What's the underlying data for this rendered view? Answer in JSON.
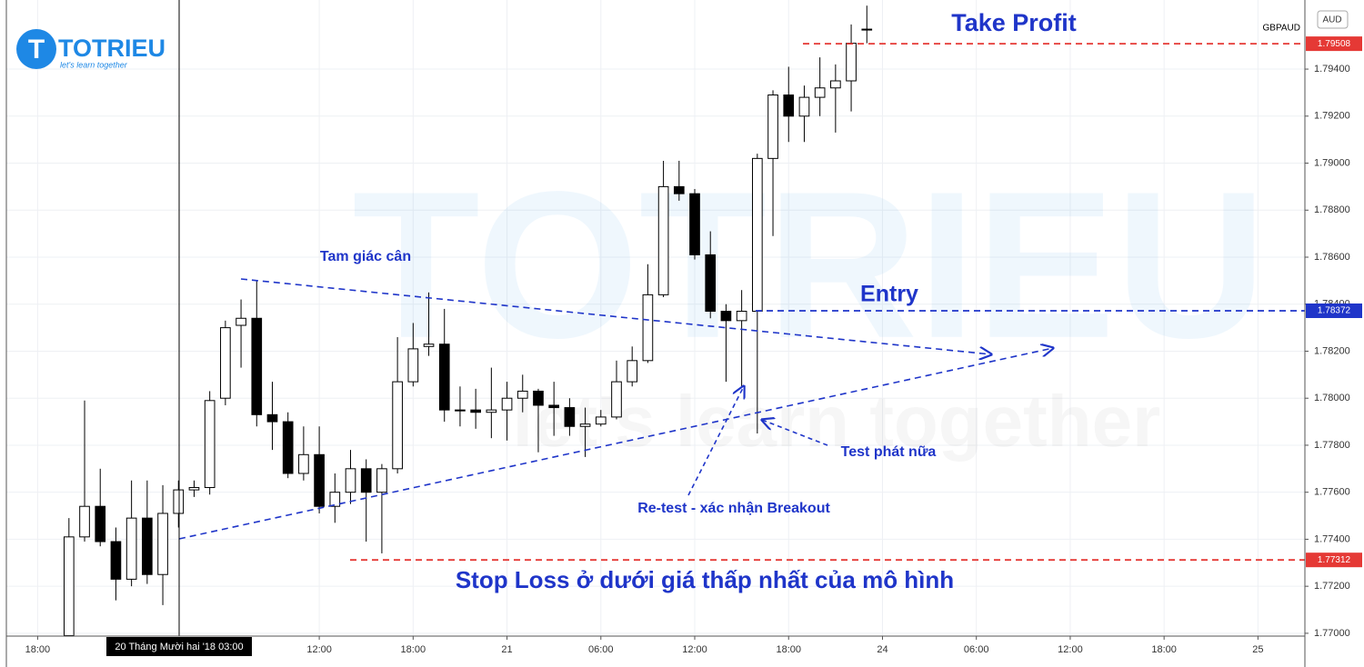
{
  "chart_data": {
    "type": "candlestick",
    "symbol": "GBPAUD",
    "currency": "AUD",
    "logo": {
      "name": "TOTRIEU",
      "slogan": "let's learn together"
    },
    "crosshair": {
      "x": 9,
      "label": "20 Tháng Mười hai '18  03:00"
    },
    "x": [
      2,
      3,
      4,
      5,
      6,
      7,
      8,
      9,
      10,
      11,
      12,
      13,
      14,
      15,
      16,
      17,
      18,
      19,
      20,
      21,
      22,
      23,
      24,
      25,
      26,
      27,
      28,
      29,
      30,
      31,
      32,
      33,
      34,
      35,
      36,
      37,
      38,
      39,
      40,
      41,
      42,
      43,
      44,
      45,
      46,
      47,
      48,
      49,
      50,
      51,
      52,
      53
    ],
    "open": [
      1.7699,
      1.7741,
      1.7754,
      1.7739,
      1.7723,
      1.7749,
      1.7725,
      1.7751,
      1.7761,
      1.7762,
      1.78,
      1.7831,
      1.7834,
      1.7793,
      1.779,
      1.7768,
      1.7776,
      1.7754,
      1.776,
      1.777,
      1.776,
      1.777,
      1.7807,
      1.7822,
      1.7823,
      1.7795,
      1.7795,
      1.7794,
      1.7795,
      1.78,
      1.7803,
      1.7797,
      1.7796,
      1.7788,
      1.7789,
      1.7792,
      1.7807,
      1.7816,
      1.7844,
      1.789,
      1.7887,
      1.7861,
      1.7837,
      1.7833,
      1.7837,
      1.7902,
      1.7929,
      1.792,
      1.7928,
      1.7932,
      1.7935,
      1.7957
    ],
    "high": [
      1.7749,
      1.7799,
      1.777,
      1.7745,
      1.7765,
      1.7765,
      1.7763,
      1.7765,
      1.7765,
      1.7803,
      1.7833,
      1.7842,
      1.785,
      1.7807,
      1.7794,
      1.7788,
      1.7788,
      1.7768,
      1.7778,
      1.7774,
      1.7772,
      1.7826,
      1.7832,
      1.7845,
      1.7838,
      1.7805,
      1.7804,
      1.7813,
      1.7807,
      1.781,
      1.7804,
      1.7807,
      1.78,
      1.7796,
      1.7795,
      1.7816,
      1.7822,
      1.7857,
      1.7901,
      1.7901,
      1.7889,
      1.7871,
      1.784,
      1.7846,
      1.7904,
      1.7931,
      1.7941,
      1.7933,
      1.7945,
      1.7942,
      1.7959,
      1.7967
    ],
    "low": [
      1.7699,
      1.7739,
      1.7737,
      1.7714,
      1.772,
      1.7721,
      1.7712,
      1.7745,
      1.7758,
      1.7759,
      1.7797,
      1.7813,
      1.7788,
      1.7778,
      1.7766,
      1.7765,
      1.7751,
      1.7747,
      1.7755,
      1.7739,
      1.7734,
      1.7768,
      1.7805,
      1.7818,
      1.779,
      1.7788,
      1.7787,
      1.7783,
      1.7782,
      1.7794,
      1.7777,
      1.7784,
      1.7784,
      1.7775,
      1.7788,
      1.7791,
      1.7805,
      1.7815,
      1.7843,
      1.7884,
      1.7859,
      1.7834,
      1.7807,
      1.7805,
      1.7785,
      1.7869,
      1.7909,
      1.7909,
      1.792,
      1.7913,
      1.7922,
      1.7951
    ],
    "close": [
      1.7741,
      1.7754,
      1.7739,
      1.7723,
      1.7749,
      1.7725,
      1.7751,
      1.7761,
      1.7762,
      1.7799,
      1.783,
      1.7834,
      1.7793,
      1.779,
      1.7768,
      1.7776,
      1.7754,
      1.776,
      1.777,
      1.776,
      1.777,
      1.7807,
      1.7821,
      1.7823,
      1.7795,
      1.7795,
      1.7794,
      1.7795,
      1.78,
      1.7803,
      1.7797,
      1.7796,
      1.7788,
      1.7789,
      1.7792,
      1.7807,
      1.7816,
      1.7844,
      1.789,
      1.7887,
      1.7861,
      1.7837,
      1.7833,
      1.7837,
      1.7902,
      1.7929,
      1.792,
      1.7928,
      1.7932,
      1.7935,
      1.7951,
      1.7957
    ],
    "up_color": "#ffffff",
    "down_color": "#000000",
    "xlim": [
      -2,
      81
    ],
    "xticks": [
      {
        "value": 0,
        "label": "18:00"
      },
      {
        "value": 18,
        "label": "12:00"
      },
      {
        "value": 24,
        "label": "18:00"
      },
      {
        "value": 30,
        "label": "21"
      },
      {
        "value": 36,
        "label": "06:00"
      },
      {
        "value": 42,
        "label": "12:00"
      },
      {
        "value": 48,
        "label": "18:00"
      },
      {
        "value": 54,
        "label": "24"
      },
      {
        "value": 60,
        "label": "06:00"
      },
      {
        "value": 66,
        "label": "12:00"
      },
      {
        "value": 72,
        "label": "18:00"
      },
      {
        "value": 78,
        "label": "25"
      }
    ],
    "ylim": [
      1.76988,
      1.79694
    ],
    "yticks": [
      {
        "value": 1.77,
        "label": "1.77000"
      },
      {
        "value": 1.772,
        "label": "1.77200"
      },
      {
        "value": 1.774,
        "label": "1.77400"
      },
      {
        "value": 1.776,
        "label": "1.77600"
      },
      {
        "value": 1.778,
        "label": "1.77800"
      },
      {
        "value": 1.78,
        "label": "1.78000"
      },
      {
        "value": 1.782,
        "label": "1.78200"
      },
      {
        "value": 1.784,
        "label": "1.78400"
      },
      {
        "value": 1.786,
        "label": "1.78600"
      },
      {
        "value": 1.788,
        "label": "1.78800"
      },
      {
        "value": 1.79,
        "label": "1.79000"
      },
      {
        "value": 1.792,
        "label": "1.79200"
      },
      {
        "value": 1.794,
        "label": "1.79400"
      }
    ],
    "grid": true,
    "levels": [
      {
        "name": "Take Profit",
        "value": 1.79508,
        "color": "#e53935"
      },
      {
        "name": "Entry",
        "value": 1.78372,
        "color": "#1f35c9"
      },
      {
        "name": "Stop Loss ở dưới giá thấp nhất của mô hình",
        "value": 1.77312,
        "color": "#e53935"
      }
    ],
    "annotations": [
      "Tam giác cân",
      "Re-test - xác nhận Breakout",
      "Test phát nữa"
    ]
  }
}
